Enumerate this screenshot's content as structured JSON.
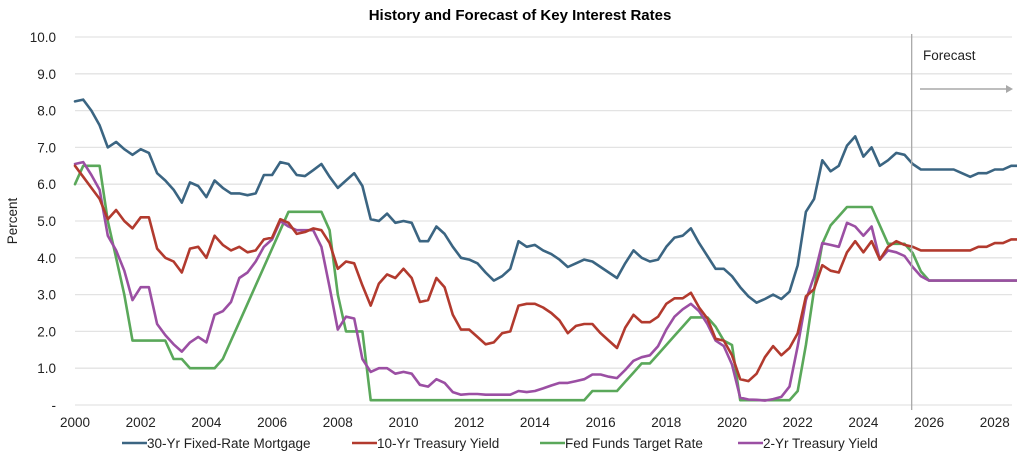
{
  "chart_data": {
    "type": "line",
    "title": "History and Forecast of Key Interest Rates",
    "xlabel": "",
    "ylabel": "Percent",
    "xlim": [
      2000,
      2028.9
    ],
    "ylim": [
      0,
      10
    ],
    "grid": true,
    "legend_position": "bottom",
    "x_ticks": [
      2000,
      2002,
      2004,
      2006,
      2008,
      2010,
      2012,
      2014,
      2016,
      2018,
      2020,
      2022,
      2024,
      2026,
      2028
    ],
    "x_tick_labels": [
      "2000",
      "2002",
      "2004",
      "2006",
      "2008",
      "2010",
      "2012",
      "2014",
      "2016",
      "2018",
      "2020",
      "2022",
      "2024",
      "2026",
      "2028"
    ],
    "y_ticks": [
      0,
      1,
      2,
      3,
      4,
      5,
      6,
      7,
      8,
      9,
      10
    ],
    "y_tick_labels": [
      "-",
      "1.0",
      "2.0",
      "3.0",
      "4.0",
      "5.0",
      "6.0",
      "7.0",
      "8.0",
      "9.0",
      "10.0"
    ],
    "x_start": 2000,
    "x_step": 0.25,
    "forecast_start": 2025.5,
    "annotations": [
      {
        "text": "Forecast",
        "type": "label"
      },
      {
        "text": "",
        "type": "arrow",
        "direction": "right"
      }
    ],
    "series": [
      {
        "name": "30-Yr Fixed-Rate Mortgage",
        "color": "#3b6582",
        "values": [
          8.25,
          8.3,
          8.0,
          7.6,
          7.0,
          7.15,
          6.95,
          6.8,
          6.95,
          6.85,
          6.3,
          6.1,
          5.85,
          5.5,
          6.05,
          5.95,
          5.65,
          6.1,
          5.9,
          5.75,
          5.75,
          5.7,
          5.75,
          6.25,
          6.25,
          6.6,
          6.55,
          6.25,
          6.22,
          6.38,
          6.55,
          6.2,
          5.9,
          6.1,
          6.3,
          5.95,
          5.05,
          5.0,
          5.2,
          4.95,
          5.0,
          4.95,
          4.45,
          4.45,
          4.85,
          4.65,
          4.3,
          4.0,
          3.95,
          3.85,
          3.6,
          3.38,
          3.5,
          3.7,
          4.45,
          4.3,
          4.35,
          4.2,
          4.1,
          3.95,
          3.75,
          3.85,
          3.95,
          3.9,
          3.75,
          3.6,
          3.45,
          3.85,
          4.2,
          4.0,
          3.9,
          3.95,
          4.3,
          4.55,
          4.6,
          4.8,
          4.4,
          4.05,
          3.7,
          3.7,
          3.5,
          3.2,
          2.95,
          2.78,
          2.88,
          3.0,
          2.88,
          3.08,
          3.8,
          5.25,
          5.6,
          6.65,
          6.35,
          6.5,
          7.05,
          7.3,
          6.75,
          7.0,
          6.5,
          6.65,
          6.85,
          6.8,
          6.55,
          6.4,
          6.4,
          6.4,
          6.4,
          6.4,
          6.3,
          6.2,
          6.3,
          6.3,
          6.4,
          6.4,
          6.5,
          6.5
        ]
      },
      {
        "name": "10-Yr Treasury Yield",
        "color": "#b23a2e",
        "values": [
          6.5,
          6.2,
          5.9,
          5.6,
          5.05,
          5.3,
          5.0,
          4.8,
          5.1,
          5.1,
          4.25,
          4.0,
          3.9,
          3.6,
          4.25,
          4.3,
          4.0,
          4.6,
          4.35,
          4.2,
          4.3,
          4.15,
          4.2,
          4.5,
          4.55,
          5.05,
          4.95,
          4.65,
          4.7,
          4.8,
          4.75,
          4.4,
          3.7,
          3.9,
          3.85,
          3.25,
          2.7,
          3.3,
          3.55,
          3.45,
          3.7,
          3.45,
          2.8,
          2.85,
          3.45,
          3.2,
          2.45,
          2.05,
          2.05,
          1.85,
          1.65,
          1.7,
          1.95,
          2.0,
          2.7,
          2.75,
          2.75,
          2.65,
          2.5,
          2.3,
          1.95,
          2.15,
          2.2,
          2.2,
          1.95,
          1.75,
          1.55,
          2.1,
          2.45,
          2.25,
          2.25,
          2.4,
          2.75,
          2.9,
          2.9,
          3.05,
          2.65,
          2.35,
          1.8,
          1.75,
          1.35,
          0.7,
          0.65,
          0.85,
          1.3,
          1.6,
          1.35,
          1.55,
          1.95,
          2.95,
          3.15,
          3.8,
          3.65,
          3.6,
          4.15,
          4.45,
          4.15,
          4.45,
          3.95,
          4.3,
          4.45,
          4.35,
          4.3,
          4.2,
          4.2,
          4.2,
          4.2,
          4.2,
          4.2,
          4.2,
          4.3,
          4.3,
          4.4,
          4.4,
          4.5,
          4.5
        ]
      },
      {
        "name": "Fed Funds Target Rate",
        "color": "#5aa85a",
        "values": [
          6.0,
          6.5,
          6.5,
          6.5,
          5.0,
          4.0,
          3.0,
          1.75,
          1.75,
          1.75,
          1.75,
          1.75,
          1.25,
          1.25,
          1.0,
          1.0,
          1.0,
          1.0,
          1.25,
          1.75,
          2.25,
          2.75,
          3.25,
          3.75,
          4.25,
          4.75,
          5.25,
          5.25,
          5.25,
          5.25,
          5.25,
          4.75,
          3.0,
          2.0,
          2.0,
          2.0,
          0.13,
          0.13,
          0.13,
          0.13,
          0.13,
          0.13,
          0.13,
          0.13,
          0.13,
          0.13,
          0.13,
          0.13,
          0.13,
          0.13,
          0.13,
          0.13,
          0.13,
          0.13,
          0.13,
          0.13,
          0.13,
          0.13,
          0.13,
          0.13,
          0.13,
          0.13,
          0.13,
          0.38,
          0.38,
          0.38,
          0.38,
          0.63,
          0.88,
          1.13,
          1.13,
          1.38,
          1.63,
          1.88,
          2.13,
          2.38,
          2.38,
          2.38,
          2.13,
          1.75,
          1.63,
          0.13,
          0.13,
          0.13,
          0.13,
          0.13,
          0.13,
          0.13,
          0.38,
          1.63,
          3.13,
          4.38,
          4.88,
          5.13,
          5.38,
          5.38,
          5.38,
          5.38,
          4.88,
          4.38,
          4.38,
          4.38,
          4.13,
          3.63,
          3.38,
          3.38,
          3.38,
          3.38,
          3.38,
          3.38,
          3.38,
          3.38,
          3.38,
          3.38,
          3.38,
          3.38
        ]
      },
      {
        "name": "2-Yr Treasury Yield",
        "color": "#9b4fa3",
        "values": [
          6.55,
          6.6,
          6.25,
          5.85,
          4.6,
          4.2,
          3.65,
          2.85,
          3.2,
          3.2,
          2.2,
          1.9,
          1.65,
          1.45,
          1.7,
          1.85,
          1.7,
          2.45,
          2.55,
          2.8,
          3.45,
          3.6,
          3.9,
          4.3,
          4.5,
          5.0,
          4.85,
          4.75,
          4.75,
          4.75,
          4.3,
          3.2,
          2.05,
          2.4,
          2.35,
          1.25,
          0.9,
          1.0,
          1.0,
          0.85,
          0.9,
          0.85,
          0.55,
          0.5,
          0.7,
          0.6,
          0.35,
          0.28,
          0.3,
          0.3,
          0.28,
          0.28,
          0.28,
          0.28,
          0.38,
          0.35,
          0.38,
          0.45,
          0.53,
          0.6,
          0.6,
          0.65,
          0.7,
          0.83,
          0.83,
          0.77,
          0.73,
          0.95,
          1.2,
          1.3,
          1.35,
          1.6,
          2.05,
          2.4,
          2.6,
          2.75,
          2.55,
          2.2,
          1.75,
          1.6,
          1.1,
          0.2,
          0.15,
          0.14,
          0.12,
          0.16,
          0.22,
          0.5,
          1.6,
          2.85,
          3.5,
          4.4,
          4.35,
          4.3,
          4.95,
          4.85,
          4.6,
          4.85,
          3.95,
          4.2,
          4.15,
          4.05,
          3.75,
          3.5,
          3.38,
          3.38,
          3.38,
          3.38,
          3.38,
          3.38,
          3.38,
          3.38,
          3.38,
          3.38,
          3.38,
          3.38
        ]
      }
    ]
  },
  "colors": {
    "grid": "#e3e3e3",
    "forecast_divider": "#a9a9a9",
    "forecast_arrow": "#a9a9a9"
  }
}
